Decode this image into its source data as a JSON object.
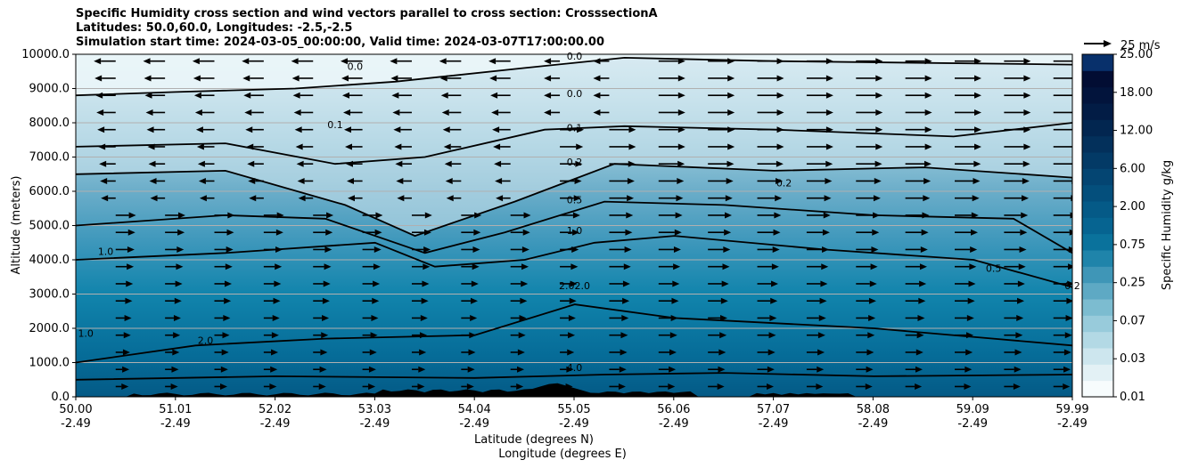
{
  "title_lines": [
    "Specific Humidity cross section and wind vectors parallel to cross section: CrosssectionA",
    "Latitudes: 50.0,60.0, Longitudes: -2.5,-2.5",
    "Simulation start time: 2024-03-05_00:00:00, Valid time: 2024-03-07T17:00:00.00"
  ],
  "chart_data": {
    "type": "heatmap",
    "ylabel": "Altitude (meters)",
    "xlabel_line1": "Latitude (degrees N)",
    "xlabel_line2": "Longitude (degrees E)",
    "ylim": [
      0,
      10000
    ],
    "y_ticks": [
      "0.0",
      "1000.0",
      "2000.0",
      "3000.0",
      "4000.0",
      "5000.0",
      "6000.0",
      "7000.0",
      "8000.0",
      "9000.0",
      "10000.0"
    ],
    "y_tick_values": [
      0,
      1000,
      2000,
      3000,
      4000,
      5000,
      6000,
      7000,
      8000,
      9000,
      10000
    ],
    "x_tick_lat": [
      "50.00",
      "51.01",
      "52.02",
      "53.03",
      "54.04",
      "55.05",
      "56.06",
      "57.07",
      "58.08",
      "59.09",
      "59.99"
    ],
    "x_tick_lon": [
      "-2.49",
      "-2.49",
      "-2.49",
      "-2.49",
      "-2.49",
      "-2.49",
      "-2.49",
      "-2.49",
      "-2.49",
      "-2.49",
      "-2.49"
    ],
    "grid": "horizontal",
    "colorbar": {
      "label": "Specific Humidity g/kg",
      "levels": [
        "0.01",
        "0.03",
        "0.07",
        "0.25",
        "0.75",
        "2.00",
        "6.00",
        "12.00",
        "18.00",
        "25.00"
      ],
      "colors": [
        "#f7fcfd",
        "#e3f1f5",
        "#cde6ee",
        "#b3d9e5",
        "#98cbdb",
        "#7cbcd0",
        "#5ea9c4",
        "#3f96b7",
        "#1f84aa",
        "#0a729c",
        "#066491",
        "#055a87",
        "#044f7c",
        "#044572",
        "#033a66",
        "#03305b",
        "#022650",
        "#021c45",
        "#02143c",
        "#020d33",
        "#08306b"
      ]
    },
    "contour_labels": [
      "0.0",
      "0.0",
      "0.0",
      "0.1",
      "0.1",
      "0.2",
      "0.2",
      "0.5",
      "0.5",
      "1.0",
      "1.0",
      "1.0",
      "2.02.0",
      "2.0",
      "4.0",
      "0.2"
    ],
    "wind_reference": "25 m/s",
    "terrain_peaks_m": [
      120,
      80,
      200,
      350,
      420,
      250,
      180,
      150
    ],
    "contours": [
      {
        "level": "4.0",
        "points": [
          [
            50.0,
            500
          ],
          [
            52.0,
            600
          ],
          [
            54.0,
            550
          ],
          [
            55.3,
            650
          ],
          [
            56.5,
            700
          ],
          [
            58.0,
            600
          ],
          [
            59.99,
            650
          ]
        ]
      },
      {
        "level": "2.0",
        "points": [
          [
            50.0,
            1000
          ],
          [
            51.2,
            1500
          ],
          [
            52.5,
            1700
          ],
          [
            54.0,
            1800
          ],
          [
            55.0,
            2700
          ],
          [
            56.0,
            2300
          ],
          [
            58.0,
            2000
          ],
          [
            59.99,
            1500
          ]
        ]
      },
      {
        "level": "1.0",
        "points": [
          [
            50.0,
            4000
          ],
          [
            51.5,
            4200
          ],
          [
            53.0,
            4500
          ],
          [
            53.6,
            3800
          ],
          [
            54.5,
            4000
          ],
          [
            55.2,
            4500
          ],
          [
            56.0,
            4700
          ],
          [
            57.5,
            4300
          ],
          [
            59.0,
            4000
          ],
          [
            59.99,
            3200
          ]
        ]
      },
      {
        "level": "0.5",
        "points": [
          [
            50.0,
            5000
          ],
          [
            51.5,
            5300
          ],
          [
            52.5,
            5200
          ],
          [
            53.5,
            4200
          ],
          [
            54.3,
            4800
          ],
          [
            55.3,
            5700
          ],
          [
            56.5,
            5600
          ],
          [
            58.0,
            5300
          ],
          [
            59.4,
            5200
          ],
          [
            59.99,
            4200
          ]
        ]
      },
      {
        "level": "0.2",
        "points": [
          [
            50.0,
            6500
          ],
          [
            51.5,
            6600
          ],
          [
            52.7,
            5600
          ],
          [
            53.4,
            4700
          ],
          [
            54.4,
            5700
          ],
          [
            55.4,
            6800
          ],
          [
            57.0,
            6600
          ],
          [
            58.5,
            6700
          ],
          [
            59.99,
            6400
          ]
        ]
      },
      {
        "level": "0.1",
        "points": [
          [
            50.0,
            7300
          ],
          [
            51.5,
            7400
          ],
          [
            52.6,
            6800
          ],
          [
            53.5,
            7000
          ],
          [
            54.7,
            7800
          ],
          [
            55.5,
            7900
          ],
          [
            57.0,
            7800
          ],
          [
            58.8,
            7600
          ],
          [
            59.99,
            8000
          ]
        ]
      },
      {
        "level": "0.0",
        "points": [
          [
            50.0,
            8800
          ],
          [
            51.0,
            8900
          ],
          [
            52.2,
            9000
          ],
          [
            53.2,
            9200
          ],
          [
            54.5,
            9600
          ],
          [
            55.5,
            9900
          ],
          [
            57.0,
            9800
          ],
          [
            59.99,
            9700
          ]
        ]
      }
    ]
  }
}
